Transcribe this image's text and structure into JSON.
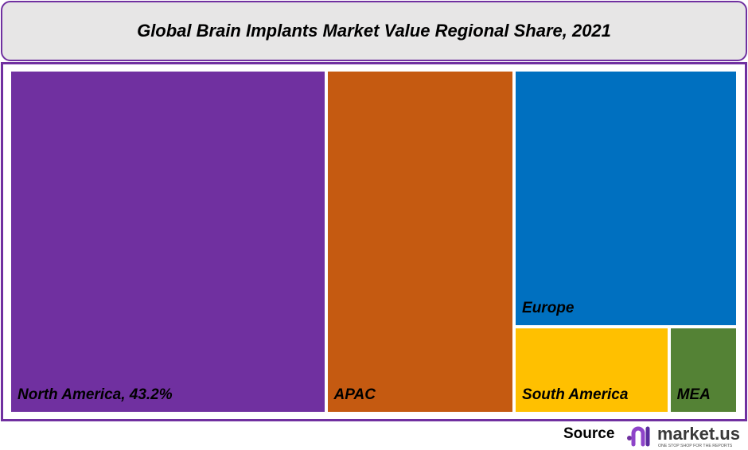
{
  "chart_data": {
    "type": "treemap",
    "title": "Global Brain Implants Market Value Regional Share, 2021",
    "unit": "%",
    "items": [
      {
        "name": "North America",
        "label": "North America, 43.2%",
        "value": 43.2,
        "color": "#7030a0"
      },
      {
        "name": "APAC",
        "label": "APAC",
        "value": 25.7,
        "color": "#c55a11"
      },
      {
        "name": "Europe",
        "label": "Europe",
        "value": 22.7,
        "color": "#0070c0"
      },
      {
        "name": "South America",
        "label": "South America",
        "value": 5.2,
        "color": "#ffc000"
      },
      {
        "name": "MEA",
        "label": "MEA",
        "value": 2.2,
        "color": "#548235"
      }
    ]
  },
  "footer": {
    "source_label": "Source",
    "logo_text": "market.us",
    "logo_tagline": "ONE STOP SHOP FOR THE REPORTS"
  },
  "colors": {
    "border": "#7030a0",
    "title_bg": "#e7e6e6"
  }
}
